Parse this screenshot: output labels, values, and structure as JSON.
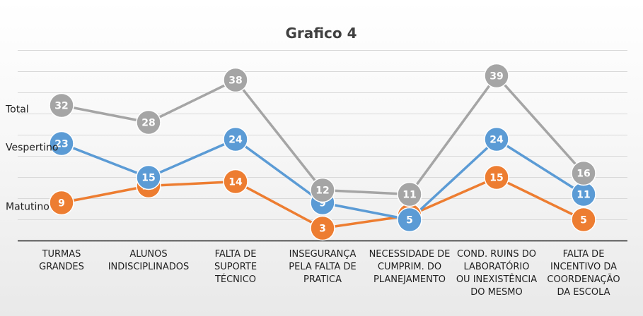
{
  "chart_data": {
    "type": "line",
    "title": "Grafico 4",
    "categories": [
      [
        "TURMAS",
        "GRANDES"
      ],
      [
        "ALUNOS",
        "INDISCIPLINADOS"
      ],
      [
        "FALTA DE",
        "SUPORTE",
        "TÉCNICO"
      ],
      [
        "INSEGURANÇA",
        "PELA FALTA DE",
        "PRATICA"
      ],
      [
        "NECESSIDADE DE",
        "CUMPRIM. DO",
        "PLANEJAMENTO"
      ],
      [
        "COND. RUINS DO",
        "LABORATÓRIO",
        "OU INEXISTÊNCIA",
        "DO MESMO"
      ],
      [
        "FALTA DE",
        "INCENTIVO DA",
        "COORDENAÇÃO",
        "DA ESCOLA"
      ]
    ],
    "series": [
      {
        "name": "Total",
        "color": "#a5a5a5",
        "values": [
          32,
          28,
          38,
          12,
          11,
          39,
          16
        ]
      },
      {
        "name": "Vespertino",
        "color": "#5b9bd5",
        "values": [
          23,
          15,
          24,
          9,
          5,
          24,
          11
        ]
      },
      {
        "name": "Matutino",
        "color": "#ed7d31",
        "values": [
          9,
          13,
          14,
          3,
          6,
          15,
          5
        ]
      }
    ],
    "grid": true,
    "legend": "none"
  }
}
